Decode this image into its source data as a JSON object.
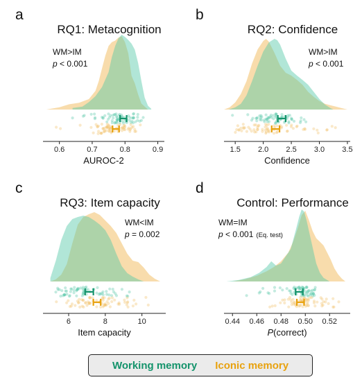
{
  "colors": {
    "wm": "#52c7a7",
    "im": "#f2bf67",
    "wm_dark": "#14936b",
    "im_dark": "#e8a20f",
    "overlap": "#c9d8a3",
    "axis": "#222222"
  },
  "legend": {
    "wm_label": "Working memory",
    "im_label": "Iconic memory"
  },
  "chart_data": [
    {
      "type": "area",
      "panel_letter": "a",
      "title": "RQ1: Metacognition",
      "xlabel": "AUROC-2",
      "xlim": [
        0.55,
        0.92
      ],
      "x_ticks": [
        0.6,
        0.7,
        0.8,
        0.9
      ],
      "x_tick_labels": [
        "0.6",
        "0.7",
        "0.8",
        "0.9"
      ],
      "annotation_lines": [
        "WM>IM",
        "p < 0.001"
      ],
      "annotation_align": "left",
      "series": [
        {
          "name": "Working memory",
          "density_x": [
            0.64,
            0.67,
            0.69,
            0.71,
            0.73,
            0.75,
            0.76,
            0.77,
            0.78,
            0.79,
            0.8,
            0.81,
            0.82,
            0.83,
            0.84,
            0.85,
            0.86,
            0.87,
            0.88
          ],
          "density_y": [
            0.02,
            0.04,
            0.1,
            0.18,
            0.3,
            0.5,
            0.7,
            0.85,
            0.95,
            1.0,
            0.97,
            0.93,
            0.88,
            0.8,
            0.62,
            0.38,
            0.16,
            0.05,
            0.01
          ],
          "mean": 0.795,
          "ci": [
            0.785,
            0.805
          ]
        },
        {
          "name": "Iconic memory",
          "density_x": [
            0.56,
            0.6,
            0.63,
            0.66,
            0.69,
            0.71,
            0.72,
            0.73,
            0.74,
            0.75,
            0.76,
            0.77,
            0.78,
            0.79,
            0.8,
            0.81,
            0.82,
            0.83,
            0.84,
            0.85,
            0.87
          ],
          "density_y": [
            0.0,
            0.03,
            0.07,
            0.09,
            0.14,
            0.25,
            0.38,
            0.55,
            0.72,
            0.85,
            0.9,
            0.92,
            0.96,
            0.98,
            0.9,
            0.75,
            0.45,
            0.35,
            0.2,
            0.08,
            0.0
          ],
          "mean": 0.772,
          "ci": [
            0.762,
            0.782
          ]
        }
      ]
    },
    {
      "type": "area",
      "panel_letter": "b",
      "title": "RQ2: Confidence",
      "xlabel": "Confidence",
      "xlim": [
        1.3,
        3.55
      ],
      "x_ticks": [
        1.5,
        2.0,
        2.5,
        3.0,
        3.5
      ],
      "x_tick_labels": [
        "1.5",
        "2.0",
        "2.5",
        "3.0",
        "3.5"
      ],
      "annotation_lines": [
        "WM>IM",
        "p < 0.001"
      ],
      "annotation_align": "left",
      "series": [
        {
          "name": "Working memory",
          "density_x": [
            1.38,
            1.5,
            1.6,
            1.7,
            1.8,
            1.9,
            2.0,
            2.1,
            2.2,
            2.25,
            2.3,
            2.4,
            2.5,
            2.6,
            2.7,
            2.8,
            2.9,
            3.0,
            3.1,
            3.2,
            3.25
          ],
          "density_y": [
            0.0,
            0.03,
            0.08,
            0.2,
            0.4,
            0.62,
            0.82,
            0.95,
            1.0,
            0.98,
            0.92,
            0.72,
            0.55,
            0.48,
            0.42,
            0.35,
            0.25,
            0.15,
            0.07,
            0.02,
            0.0
          ],
          "mean": 2.33,
          "ci": [
            2.26,
            2.4
          ]
        },
        {
          "name": "Iconic memory",
          "density_x": [
            1.3,
            1.4,
            1.5,
            1.6,
            1.7,
            1.8,
            1.9,
            2.0,
            2.05,
            2.1,
            2.2,
            2.3,
            2.4,
            2.5,
            2.6,
            2.7,
            2.8,
            2.9,
            3.0,
            3.1,
            3.2,
            3.3,
            3.4,
            3.5
          ],
          "density_y": [
            0.0,
            0.03,
            0.1,
            0.22,
            0.4,
            0.65,
            0.85,
            0.97,
            1.0,
            0.96,
            0.8,
            0.62,
            0.52,
            0.48,
            0.42,
            0.35,
            0.25,
            0.18,
            0.12,
            0.08,
            0.06,
            0.04,
            0.02,
            0.0
          ],
          "mean": 2.22,
          "ci": [
            2.15,
            2.29
          ]
        }
      ]
    },
    {
      "type": "area",
      "panel_letter": "c",
      "title": "RQ3: Item capacity",
      "xlabel": "Item capacity",
      "xlim": [
        4.6,
        11.3
      ],
      "x_ticks": [
        6,
        8,
        10
      ],
      "x_tick_labels": [
        "6",
        "8",
        "10"
      ],
      "annotation_lines": [
        "WM<IM",
        "p = 0.002"
      ],
      "annotation_align": "left",
      "series": [
        {
          "name": "Working memory",
          "density_x": [
            5.0,
            5.3,
            5.6,
            5.9,
            6.2,
            6.5,
            6.8,
            7.1,
            7.4,
            7.7,
            8.0,
            8.3,
            8.6,
            8.9,
            9.2,
            9.5,
            9.8,
            10.1
          ],
          "density_y": [
            0.05,
            0.3,
            0.6,
            0.8,
            0.9,
            0.93,
            0.95,
            0.93,
            0.88,
            0.82,
            0.74,
            0.6,
            0.4,
            0.22,
            0.12,
            0.07,
            0.03,
            0.0
          ],
          "mean": 7.1,
          "ci": [
            6.9,
            7.35
          ]
        },
        {
          "name": "Iconic memory",
          "density_x": [
            5.0,
            5.3,
            5.6,
            5.9,
            6.2,
            6.5,
            6.8,
            7.1,
            7.4,
            7.7,
            8.0,
            8.3,
            8.6,
            8.9,
            9.2,
            9.5,
            9.8,
            10.1,
            10.4,
            10.7,
            11.0
          ],
          "density_y": [
            0.0,
            0.03,
            0.1,
            0.25,
            0.55,
            0.82,
            0.93,
            0.97,
            1.0,
            0.96,
            0.88,
            0.8,
            0.7,
            0.55,
            0.4,
            0.3,
            0.28,
            0.2,
            0.1,
            0.04,
            0.0
          ],
          "mean": 7.55,
          "ci": [
            7.35,
            7.75
          ]
        }
      ]
    },
    {
      "type": "area",
      "panel_letter": "d",
      "title": "Control: Performance",
      "xlabel": "P(correct)",
      "xlim": [
        0.433,
        0.537
      ],
      "x_ticks": [
        0.44,
        0.46,
        0.48,
        0.5,
        0.52
      ],
      "x_tick_labels": [
        "0.44",
        "0.46",
        "0.48",
        "0.50",
        "0.52"
      ],
      "annotation_lines": [
        "WM=IM",
        "p < 0.001",
        "(Eq. test)"
      ],
      "annotation_align": "left",
      "series": [
        {
          "name": "Working memory",
          "density_x": [
            0.435,
            0.445,
            0.455,
            0.462,
            0.468,
            0.472,
            0.476,
            0.48,
            0.484,
            0.488,
            0.492,
            0.495,
            0.497,
            0.499,
            0.501,
            0.503,
            0.505,
            0.507,
            0.509,
            0.512,
            0.515,
            0.518,
            0.52
          ],
          "density_y": [
            0.0,
            0.02,
            0.06,
            0.12,
            0.2,
            0.28,
            0.22,
            0.25,
            0.35,
            0.45,
            0.7,
            0.9,
            1.0,
            0.97,
            0.85,
            0.7,
            0.55,
            0.4,
            0.25,
            0.12,
            0.05,
            0.02,
            0.0
          ],
          "mean": 0.495,
          "ci": [
            0.492,
            0.498
          ]
        },
        {
          "name": "Iconic memory",
          "density_x": [
            0.44,
            0.45,
            0.46,
            0.468,
            0.474,
            0.48,
            0.486,
            0.49,
            0.494,
            0.497,
            0.5,
            0.503,
            0.506,
            0.509,
            0.512,
            0.515,
            0.518,
            0.521,
            0.524,
            0.527,
            0.53,
            0.533
          ],
          "density_y": [
            0.0,
            0.03,
            0.08,
            0.14,
            0.2,
            0.28,
            0.4,
            0.55,
            0.75,
            0.92,
            0.98,
            0.85,
            0.7,
            0.6,
            0.55,
            0.5,
            0.4,
            0.3,
            0.18,
            0.1,
            0.04,
            0.0
          ],
          "mean": 0.496,
          "ci": [
            0.493,
            0.499
          ]
        }
      ]
    }
  ]
}
